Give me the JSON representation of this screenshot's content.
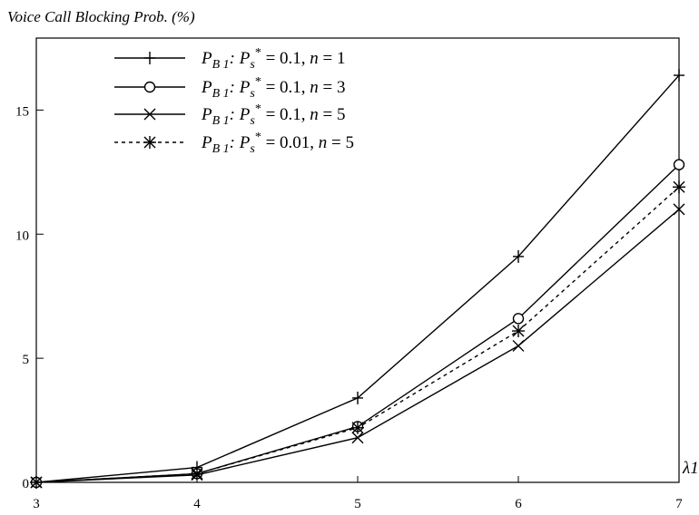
{
  "chart_data": {
    "type": "line",
    "title": "",
    "ylabel": "Voice Call Blocking Prob. (%)",
    "xlabel": "λ1",
    "x": [
      3,
      4,
      5,
      6,
      7
    ],
    "xlim": [
      3,
      7
    ],
    "ylim": [
      0,
      17.9
    ],
    "x_ticks": [
      "3",
      "4",
      "5",
      "6",
      "7"
    ],
    "y_ticks": [
      "0",
      "5",
      "10",
      "15"
    ],
    "y_tick_values": [
      0,
      5,
      10,
      15
    ],
    "grid": false,
    "legend_position": "top-left",
    "series": [
      {
        "legend": {
          "var": "P",
          "sub1": "B 1",
          "mid": ": P",
          "sub2": "s",
          "sup": "*",
          "rest": " = 0.1, ",
          "n": "n",
          "nval": " = 1"
        },
        "marker": "plus",
        "dash": "solid",
        "values": [
          0,
          0.6,
          3.4,
          9.1,
          16.4
        ]
      },
      {
        "legend": {
          "var": "P",
          "sub1": "B 1",
          "mid": ": P",
          "sub2": "s",
          "sup": "*",
          "rest": " = 0.1, ",
          "n": "n",
          "nval": " = 3"
        },
        "marker": "circle",
        "dash": "solid",
        "values": [
          0,
          0.35,
          2.25,
          6.6,
          12.8
        ]
      },
      {
        "legend": {
          "var": "P",
          "sub1": "B 1",
          "mid": ": P",
          "sub2": "s",
          "sup": "*",
          "rest": " = 0.1, ",
          "n": "n",
          "nval": " = 5"
        },
        "marker": "x",
        "dash": "solid",
        "values": [
          0,
          0.3,
          1.8,
          5.5,
          11.0
        ]
      },
      {
        "legend": {
          "var": "P",
          "sub1": "B 1",
          "mid": ": P",
          "sub2": "s",
          "sup": "*",
          "rest": " = 0.01, ",
          "n": "n",
          "nval": " = 5"
        },
        "marker": "asterisk",
        "dash": "dotted",
        "values": [
          0,
          0.35,
          2.2,
          6.1,
          11.9
        ]
      }
    ]
  }
}
